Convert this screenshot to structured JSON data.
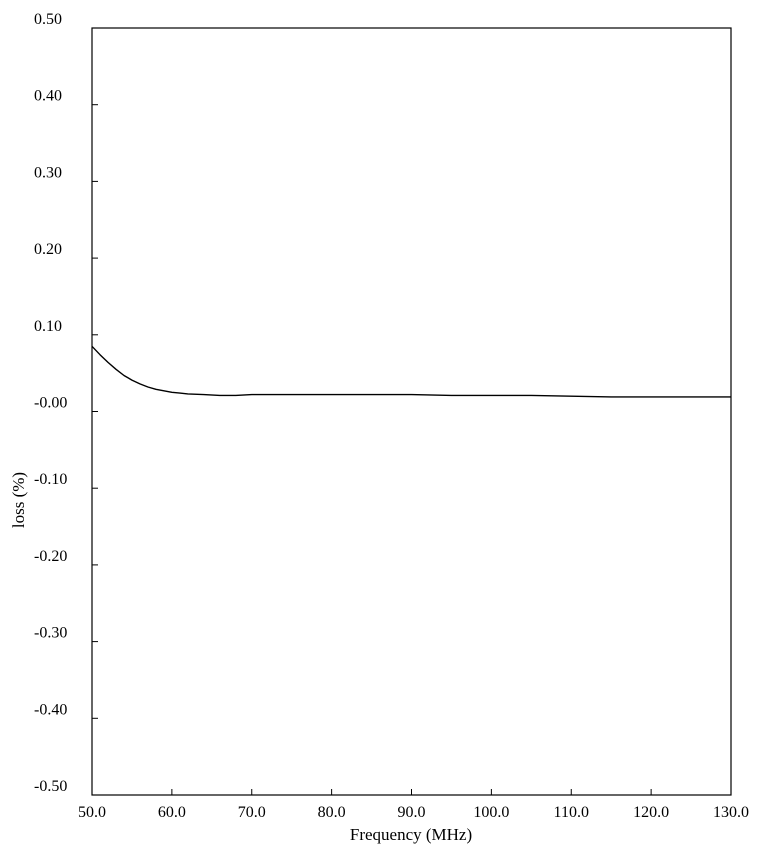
{
  "chart_data": {
    "type": "line",
    "title": "",
    "xlabel": "Frequency (MHz)",
    "ylabel": "loss (%)",
    "xlim": [
      50.0,
      130.0
    ],
    "ylim": [
      -0.5,
      0.5
    ],
    "x_ticks": [
      "50.0",
      "60.0",
      "70.0",
      "80.0",
      "90.0",
      "100.0",
      "110.0",
      "120.0",
      "130.0"
    ],
    "y_ticks": [
      "0.50",
      "0.40",
      "0.30",
      "0.20",
      "0.10",
      "-0.00",
      "-0.10",
      "-0.20",
      "-0.30",
      "-0.40",
      "-0.50"
    ],
    "grid": false,
    "colors": {
      "line": "#000000",
      "axes": "#000000"
    },
    "series": [
      {
        "x": [
          50.0,
          51.0,
          52.0,
          53.0,
          54.0,
          55.0,
          56.0,
          57.0,
          58.0,
          59.0,
          60.0,
          61.0,
          62.0,
          64.0,
          66.0,
          68.0,
          70.0,
          75.0,
          80.0,
          85.0,
          90.0,
          95.0,
          100.0,
          105.0,
          110.0,
          115.0,
          120.0,
          125.0,
          130.0
        ],
        "y": [
          0.085,
          0.074,
          0.064,
          0.055,
          0.047,
          0.041,
          0.036,
          0.032,
          0.029,
          0.027,
          0.025,
          0.024,
          0.023,
          0.022,
          0.021,
          0.021,
          0.022,
          0.022,
          0.022,
          0.022,
          0.022,
          0.021,
          0.021,
          0.021,
          0.02,
          0.019,
          0.019,
          0.019,
          0.019
        ]
      }
    ]
  }
}
